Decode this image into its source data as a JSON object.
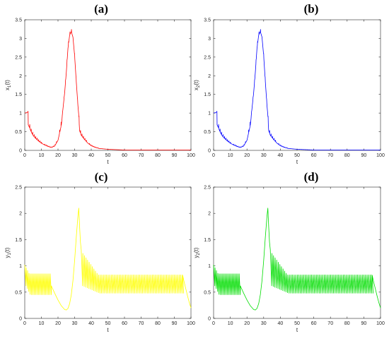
{
  "chart_data": [
    {
      "panel": "a",
      "title": "(a)",
      "type": "line",
      "xlabel": "t",
      "ylabel": "x1(t)",
      "ylabel_main": "x",
      "ylabel_sub": "1",
      "ylabel_tail": "(t)",
      "color": "#ff0000",
      "xlim": [
        0,
        100
      ],
      "ylim": [
        0,
        3.5
      ],
      "xticks": [
        0,
        10,
        20,
        30,
        40,
        50,
        60,
        70,
        80,
        90,
        100
      ],
      "yticks": [
        0,
        0.5,
        1,
        1.5,
        2,
        2.5,
        3,
        3.5
      ],
      "ytick_labels": [
        "0",
        "0.5",
        "1",
        "1.5",
        "2",
        "2.5",
        "3",
        "3.5"
      ],
      "x": [
        0,
        1,
        2,
        2.01,
        3,
        4,
        5,
        6,
        8,
        10,
        12,
        14,
        16,
        18,
        20,
        22,
        24,
        25,
        26,
        27,
        28,
        29,
        30,
        31,
        32,
        32.5,
        33,
        34,
        36,
        38,
        40,
        42,
        45,
        50,
        55,
        60,
        70,
        80,
        90,
        100
      ],
      "y": [
        1.0,
        1.01,
        1.03,
        0.72,
        0.62,
        0.5,
        0.42,
        0.36,
        0.27,
        0.2,
        0.15,
        0.11,
        0.08,
        0.12,
        0.28,
        0.7,
        1.55,
        2.1,
        2.75,
        3.1,
        3.2,
        3.05,
        2.55,
        1.85,
        1.2,
        0.95,
        0.55,
        0.42,
        0.3,
        0.2,
        0.13,
        0.09,
        0.05,
        0.03,
        0.02,
        0.01,
        0.01,
        0.01,
        0.01,
        0.01
      ],
      "oscillation": {
        "t_start": 2,
        "t_end": 45,
        "period": 0.9,
        "amplitude_ratio": 0.12
      }
    },
    {
      "panel": "b",
      "title": "(b)",
      "type": "line",
      "xlabel": "t",
      "ylabel": "x2(t)",
      "ylabel_main": "x",
      "ylabel_sub": "2",
      "ylabel_tail": "(t)",
      "color": "#0000ff",
      "xlim": [
        0,
        100
      ],
      "ylim": [
        0,
        3.5
      ],
      "xticks": [
        0,
        10,
        20,
        30,
        40,
        50,
        60,
        70,
        80,
        90,
        100
      ],
      "yticks": [
        0,
        0.5,
        1,
        1.5,
        2,
        2.5,
        3,
        3.5
      ],
      "ytick_labels": [
        "0",
        "0.5",
        "1",
        "1.5",
        "2",
        "2.5",
        "3",
        "3.5"
      ],
      "x": [
        0,
        1,
        2,
        2.01,
        3,
        4,
        5,
        6,
        8,
        10,
        12,
        14,
        16,
        18,
        20,
        22,
        24,
        25,
        26,
        27,
        28,
        29,
        30,
        31,
        32,
        32.5,
        33,
        34,
        36,
        38,
        40,
        42,
        45,
        50,
        55,
        60,
        70,
        80,
        90,
        100
      ],
      "y": [
        1.0,
        1.01,
        1.03,
        0.72,
        0.62,
        0.5,
        0.42,
        0.36,
        0.27,
        0.2,
        0.15,
        0.11,
        0.08,
        0.12,
        0.28,
        0.7,
        1.55,
        2.1,
        2.75,
        3.1,
        3.2,
        3.05,
        2.55,
        1.85,
        1.2,
        0.95,
        0.55,
        0.42,
        0.3,
        0.2,
        0.13,
        0.09,
        0.05,
        0.03,
        0.02,
        0.01,
        0.01,
        0.01,
        0.01,
        0.01
      ],
      "oscillation": {
        "t_start": 2,
        "t_end": 45,
        "period": 0.9,
        "amplitude_ratio": 0.12
      }
    },
    {
      "panel": "c",
      "title": "(c)",
      "type": "line",
      "xlabel": "t",
      "ylabel": "y1(t)",
      "ylabel_main": "y",
      "ylabel_sub": "1",
      "ylabel_tail": "(t)",
      "color": "#ffff00",
      "xlim": [
        0,
        100
      ],
      "ylim": [
        0,
        2.5
      ],
      "xticks": [
        0,
        10,
        20,
        30,
        40,
        50,
        60,
        70,
        80,
        90,
        100
      ],
      "yticks": [
        0,
        0.5,
        1,
        1.5,
        2,
        2.5
      ],
      "ytick_labels": [
        "0",
        "0.5",
        "1",
        "1.5",
        "2",
        "2.5"
      ],
      "segments": [
        {
          "type": "osc",
          "t_start": 0,
          "t_end": 16,
          "period": 0.85,
          "hi_start": 1.02,
          "hi_end": 0.85,
          "lo_start": 0.62,
          "lo_end": 0.45
        },
        {
          "type": "curve",
          "x": [
            16,
            18,
            20,
            22,
            24,
            25,
            26,
            27,
            28,
            29,
            30,
            31,
            31.5,
            32,
            32.5,
            33,
            33.5,
            34
          ],
          "y": [
            0.62,
            0.48,
            0.35,
            0.24,
            0.17,
            0.16,
            0.19,
            0.28,
            0.45,
            0.72,
            1.1,
            1.55,
            1.75,
            1.95,
            2.1,
            1.75,
            1.45,
            1.3
          ]
        },
        {
          "type": "osc",
          "t_start": 34,
          "t_end": 95,
          "period": 0.95,
          "hi_start": 1.28,
          "hi_end": 0.83,
          "lo_start": 0.62,
          "lo_end": 0.48
        },
        {
          "type": "curve",
          "x": [
            95,
            96,
            97,
            98,
            99,
            100
          ],
          "y": [
            0.82,
            0.68,
            0.55,
            0.42,
            0.3,
            0.2
          ]
        }
      ]
    },
    {
      "panel": "d",
      "title": "(d)",
      "type": "line",
      "xlabel": "t",
      "ylabel": "y2(t)",
      "ylabel_main": "y",
      "ylabel_sub": "2",
      "ylabel_tail": "(t)",
      "color": "#00dd00",
      "xlim": [
        0,
        100
      ],
      "ylim": [
        0,
        2.5
      ],
      "xticks": [
        0,
        10,
        20,
        30,
        40,
        50,
        60,
        70,
        80,
        90,
        100
      ],
      "yticks": [
        0,
        0.5,
        1,
        1.5,
        2,
        2.5
      ],
      "ytick_labels": [
        "0",
        "0.5",
        "1",
        "1.5",
        "2",
        "2.5"
      ],
      "segments": [
        {
          "type": "osc",
          "t_start": 0,
          "t_end": 16,
          "period": 0.85,
          "hi_start": 1.02,
          "hi_end": 0.85,
          "lo_start": 0.62,
          "lo_end": 0.45
        },
        {
          "type": "curve",
          "x": [
            16,
            18,
            20,
            22,
            24,
            25,
            26,
            27,
            28,
            29,
            30,
            31,
            31.5,
            32,
            32.5,
            33,
            33.5,
            34
          ],
          "y": [
            0.62,
            0.48,
            0.35,
            0.24,
            0.17,
            0.16,
            0.19,
            0.28,
            0.45,
            0.72,
            1.1,
            1.55,
            1.75,
            1.95,
            2.1,
            1.75,
            1.45,
            1.3
          ]
        },
        {
          "type": "osc",
          "t_start": 34,
          "t_end": 95,
          "period": 0.95,
          "hi_start": 1.28,
          "hi_end": 0.83,
          "lo_start": 0.62,
          "lo_end": 0.48
        },
        {
          "type": "curve",
          "x": [
            95,
            96,
            97,
            98,
            99,
            100
          ],
          "y": [
            0.82,
            0.68,
            0.55,
            0.42,
            0.3,
            0.2
          ]
        }
      ]
    }
  ]
}
